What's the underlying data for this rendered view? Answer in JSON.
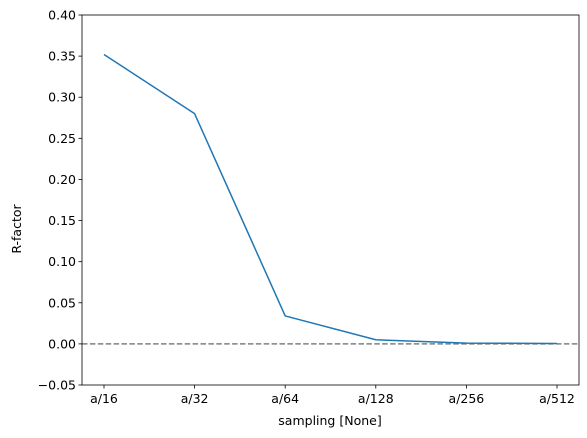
{
  "chart_data": {
    "type": "line",
    "title": "",
    "xlabel": "sampling [None]",
    "ylabel": "R-factor",
    "categories": [
      "a/16",
      "a/32",
      "a/64",
      "a/128",
      "a/256",
      "a/512"
    ],
    "series": [
      {
        "values": [
          0.352,
          0.28,
          0.034,
          0.005,
          0.001,
          0.0005
        ],
        "color": "#1f77b4"
      }
    ],
    "reference_line": {
      "y": 0.0,
      "style": "dashed",
      "color": "#808080"
    },
    "ylim": [
      -0.05,
      0.4
    ],
    "yticks": [
      -0.05,
      0.0,
      0.05,
      0.1,
      0.15,
      0.2,
      0.25,
      0.3,
      0.35,
      0.4
    ],
    "ytick_labels": [
      "−0.05",
      "0.00",
      "0.05",
      "0.10",
      "0.15",
      "0.20",
      "0.25",
      "0.30",
      "0.35",
      "0.40"
    ],
    "grid": false,
    "legend": "none"
  }
}
